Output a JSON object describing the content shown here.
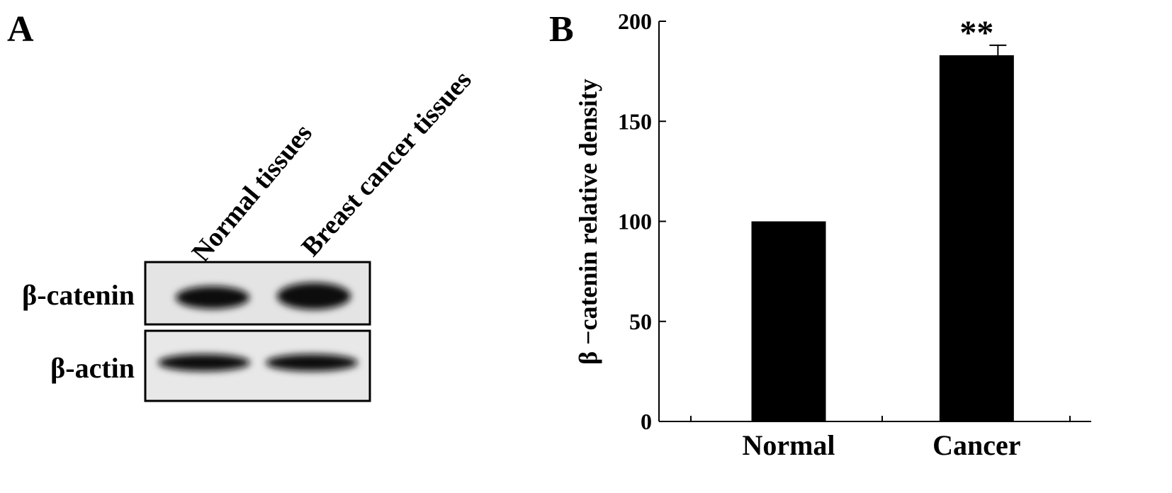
{
  "panel_a": {
    "panel_label": "A",
    "lanes": [
      "Normal tissues",
      "Breast cancer tissues"
    ],
    "rows": [
      "β-catenin",
      "β-actin"
    ]
  },
  "chart_data": {
    "type": "bar",
    "panel_label": "B",
    "ylabel": "β −catenin relative density",
    "categories": [
      "Normal",
      "Cancer"
    ],
    "values": [
      100,
      183
    ],
    "errors": [
      null,
      5
    ],
    "color": "#000000",
    "annotations": [
      null,
      "**"
    ],
    "ylim": [
      0,
      200
    ],
    "yticks": [
      0,
      50,
      100,
      150,
      200
    ]
  }
}
